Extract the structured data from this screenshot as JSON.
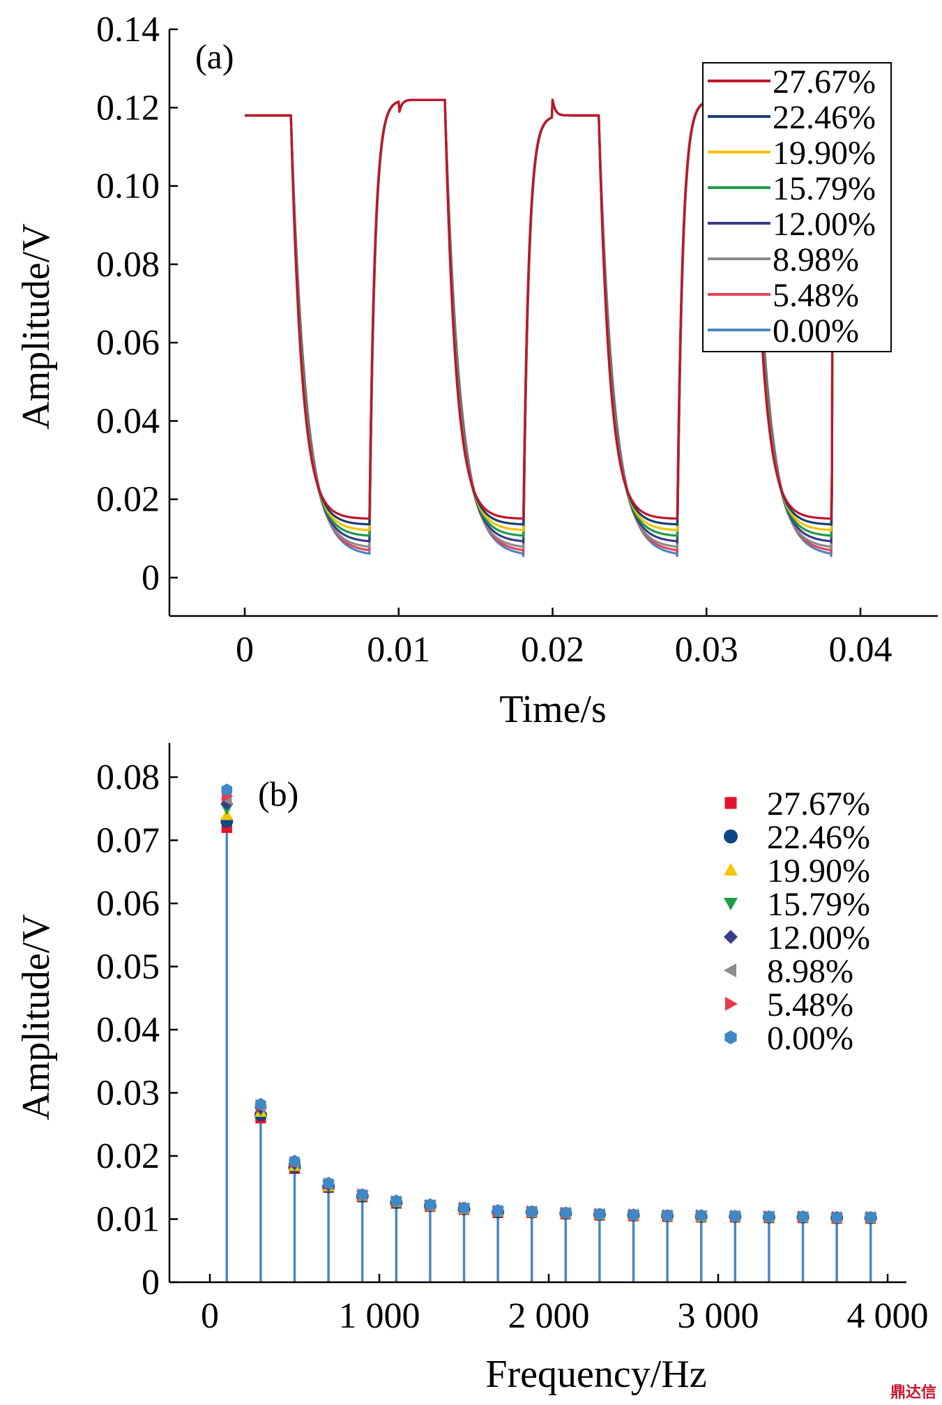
{
  "watermark": "鼎达信",
  "chart_data": [
    {
      "type": "line",
      "panel_label": "(a)",
      "xlabel": "Time/s",
      "ylabel": "Amplitude/V",
      "xlim": [
        -0.005,
        0.045
      ],
      "ylim": [
        -0.01,
        0.14
      ],
      "xticks": [
        0,
        0.01,
        0.02,
        0.03,
        0.04
      ],
      "xtick_labels": [
        "0",
        "0.01",
        "0.02",
        "0.03",
        "0.04"
      ],
      "yticks": [
        0,
        0.02,
        0.04,
        0.06,
        0.08,
        0.1,
        0.12,
        0.14
      ],
      "ytick_labels": [
        "0",
        "0.02",
        "0.04",
        "0.06",
        "0.08",
        "0.10",
        "0.12",
        "0.14"
      ],
      "legend_position": "top-right",
      "period_s": 0.01,
      "high_level_V": [
        0.118,
        0.122
      ],
      "series": [
        {
          "name": "27.67%",
          "color": "#c0152b",
          "min_V": 0.015
        },
        {
          "name": "22.46%",
          "color": "#1a3f73",
          "min_V": 0.0135
        },
        {
          "name": "19.90%",
          "color": "#f2c200",
          "min_V": 0.012
        },
        {
          "name": "15.79%",
          "color": "#1f9a4a",
          "min_V": 0.0105
        },
        {
          "name": "12.00%",
          "color": "#3b3d86",
          "min_V": 0.009
        },
        {
          "name": "8.98%",
          "color": "#8a8a8a",
          "min_V": 0.0075
        },
        {
          "name": "5.48%",
          "color": "#e0455a",
          "min_V": 0.0065
        },
        {
          "name": "0.00%",
          "color": "#4a87c0",
          "min_V": 0.0055
        }
      ]
    },
    {
      "type": "scatter",
      "panel_label": "(b)",
      "xlabel": "Frequency/Hz",
      "ylabel": "Amplitude/V",
      "xlim": [
        -300,
        4250
      ],
      "ylim": [
        0,
        0.085
      ],
      "xticks": [
        0,
        1000,
        2000,
        3000,
        4000
      ],
      "xtick_labels": [
        "0",
        "1 000",
        "2 000",
        "3 000",
        "4 000"
      ],
      "yticks": [
        0,
        0.01,
        0.02,
        0.03,
        0.04,
        0.05,
        0.06,
        0.07,
        0.08
      ],
      "ytick_labels": [
        "0",
        "0.01",
        "0.02",
        "0.03",
        "0.04",
        "0.05",
        "0.06",
        "0.07",
        "0.08"
      ],
      "legend_position": "top-right",
      "stem_color": "#4a87c0",
      "x": [
        100,
        300,
        500,
        700,
        900,
        1100,
        1300,
        1500,
        1700,
        1900,
        2100,
        2300,
        2500,
        2700,
        2900,
        3100,
        3300,
        3500,
        3700,
        3900
      ],
      "series": [
        {
          "name": "27.67%",
          "marker": "square",
          "color": "#e3132b",
          "values": [
            0.072,
            0.026,
            0.018,
            0.015,
            0.0135,
            0.0125,
            0.012,
            0.0115,
            0.011,
            0.011,
            0.0108,
            0.0106,
            0.0105,
            0.0104,
            0.0103,
            0.0103,
            0.0102,
            0.0102,
            0.0101,
            0.0101
          ]
        },
        {
          "name": "22.46%",
          "marker": "circle",
          "color": "#0b4785",
          "values": [
            0.073,
            0.0265,
            0.0182,
            0.0151,
            0.0136,
            0.0126,
            0.0121,
            0.0116,
            0.0111,
            0.0111,
            0.0109,
            0.0107,
            0.0106,
            0.0105,
            0.0104,
            0.0104,
            0.0103,
            0.0103,
            0.0102,
            0.0102
          ]
        },
        {
          "name": "19.90%",
          "marker": "triangle-up",
          "color": "#f5c400",
          "values": [
            0.074,
            0.027,
            0.0184,
            0.0152,
            0.0137,
            0.0127,
            0.0121,
            0.0116,
            0.0112,
            0.0111,
            0.0109,
            0.0107,
            0.0106,
            0.0105,
            0.0104,
            0.0104,
            0.0103,
            0.0103,
            0.0102,
            0.0102
          ]
        },
        {
          "name": "15.79%",
          "marker": "triangle-down",
          "color": "#1e9b48",
          "values": [
            0.075,
            0.0273,
            0.0186,
            0.0153,
            0.0137,
            0.0127,
            0.0122,
            0.0117,
            0.0112,
            0.0111,
            0.0109,
            0.0107,
            0.0106,
            0.0105,
            0.0105,
            0.0104,
            0.0104,
            0.0103,
            0.0102,
            0.0102
          ]
        },
        {
          "name": "12.00%",
          "marker": "diamond",
          "color": "#3a3c8c",
          "values": [
            0.0758,
            0.0276,
            0.0188,
            0.0154,
            0.0138,
            0.0128,
            0.0122,
            0.0117,
            0.0113,
            0.0112,
            0.011,
            0.0108,
            0.0107,
            0.0106,
            0.0105,
            0.0104,
            0.0104,
            0.0103,
            0.0103,
            0.0103
          ]
        },
        {
          "name": "8.98%",
          "marker": "triangle-left",
          "color": "#8c8c8c",
          "values": [
            0.0765,
            0.0278,
            0.0189,
            0.0155,
            0.0138,
            0.0128,
            0.0122,
            0.0117,
            0.0113,
            0.0112,
            0.011,
            0.0108,
            0.0107,
            0.0106,
            0.0105,
            0.0105,
            0.0104,
            0.0103,
            0.0103,
            0.0103
          ]
        },
        {
          "name": "5.48%",
          "marker": "triangle-right",
          "color": "#e8394f",
          "values": [
            0.077,
            0.028,
            0.019,
            0.0156,
            0.0139,
            0.0128,
            0.0122,
            0.0118,
            0.0113,
            0.0112,
            0.011,
            0.0108,
            0.0107,
            0.0106,
            0.0106,
            0.0105,
            0.0104,
            0.0104,
            0.0103,
            0.0103
          ]
        },
        {
          "name": "0.00%",
          "marker": "hexagon",
          "color": "#3f88c5",
          "values": [
            0.078,
            0.0282,
            0.0192,
            0.0157,
            0.0139,
            0.0129,
            0.0123,
            0.0118,
            0.0114,
            0.0112,
            0.011,
            0.0108,
            0.0107,
            0.0106,
            0.0106,
            0.0105,
            0.0104,
            0.0104,
            0.0103,
            0.0103
          ]
        }
      ]
    }
  ]
}
